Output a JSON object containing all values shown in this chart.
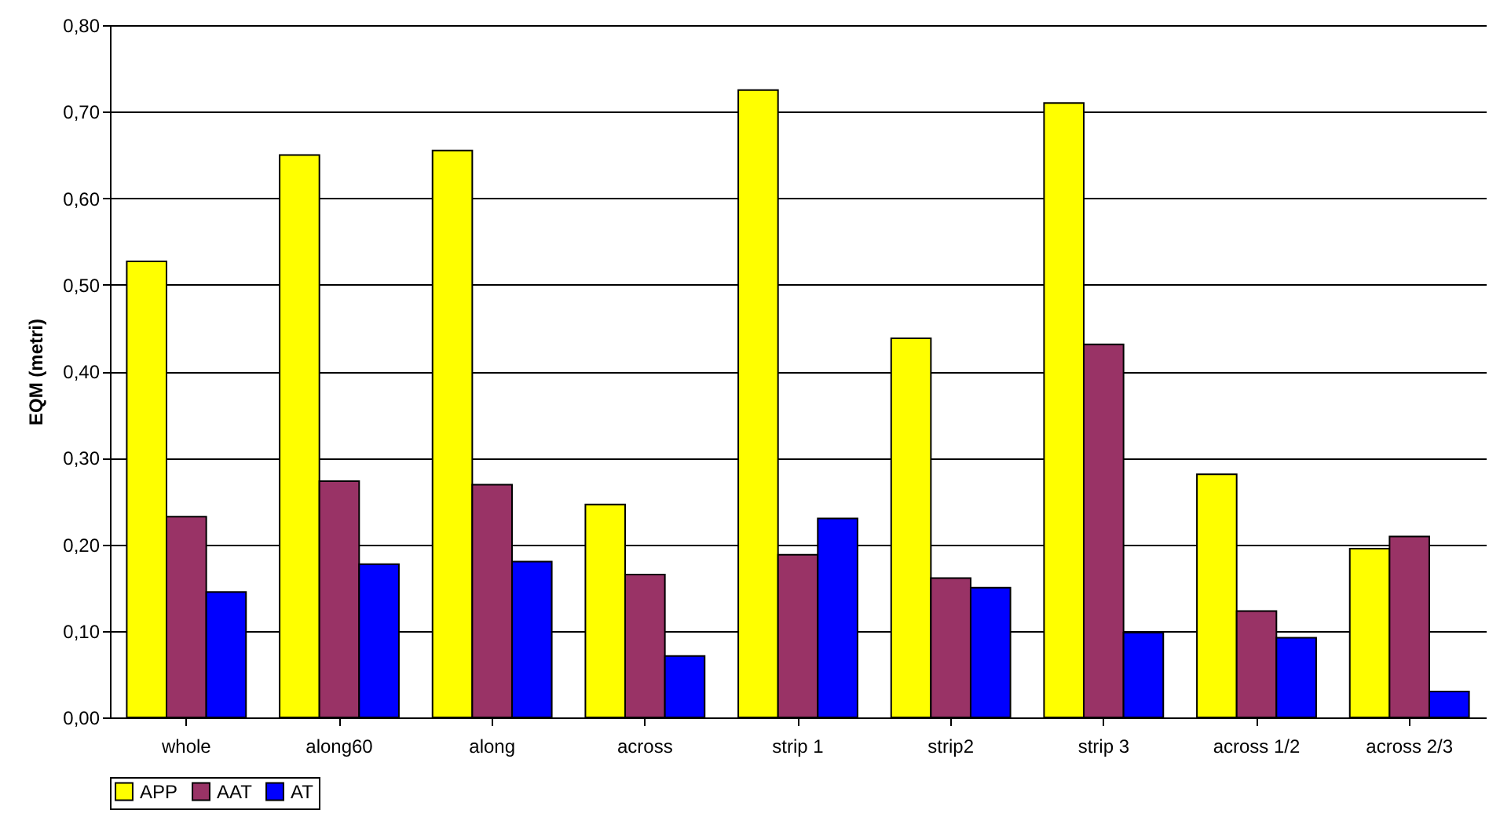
{
  "chart_data": {
    "type": "bar",
    "ylabel": "EQM (metri)",
    "categories": [
      "whole",
      "along60",
      "along",
      "across",
      "strip 1",
      "strip2",
      "strip 3",
      "across 1/2",
      "across 2/3"
    ],
    "series": [
      {
        "name": "APP",
        "color": "#ffff00",
        "values": [
          0.527,
          0.65,
          0.655,
          0.246,
          0.725,
          0.438,
          0.71,
          0.281,
          0.195
        ]
      },
      {
        "name": "AAT",
        "color": "#993366",
        "values": [
          0.232,
          0.273,
          0.269,
          0.165,
          0.188,
          0.161,
          0.431,
          0.123,
          0.209
        ]
      },
      {
        "name": "AT",
        "color": "#0000ff",
        "values": [
          0.145,
          0.177,
          0.18,
          0.071,
          0.23,
          0.15,
          0.098,
          0.092,
          0.03
        ]
      }
    ],
    "ylim": [
      0,
      0.8
    ],
    "yticks": [
      {
        "value": 0,
        "label": "0,00"
      },
      {
        "value": 0.1,
        "label": "0,10"
      },
      {
        "value": 0.2,
        "label": "0,20"
      },
      {
        "value": 0.3,
        "label": "0,30"
      },
      {
        "value": 0.4,
        "label": "0,40"
      },
      {
        "value": 0.5,
        "label": "0,50"
      },
      {
        "value": 0.6,
        "label": "0,60"
      },
      {
        "value": 0.7,
        "label": "0,70"
      },
      {
        "value": 0.8,
        "label": "0,80"
      }
    ],
    "grid": "y",
    "legend": "bottom"
  }
}
